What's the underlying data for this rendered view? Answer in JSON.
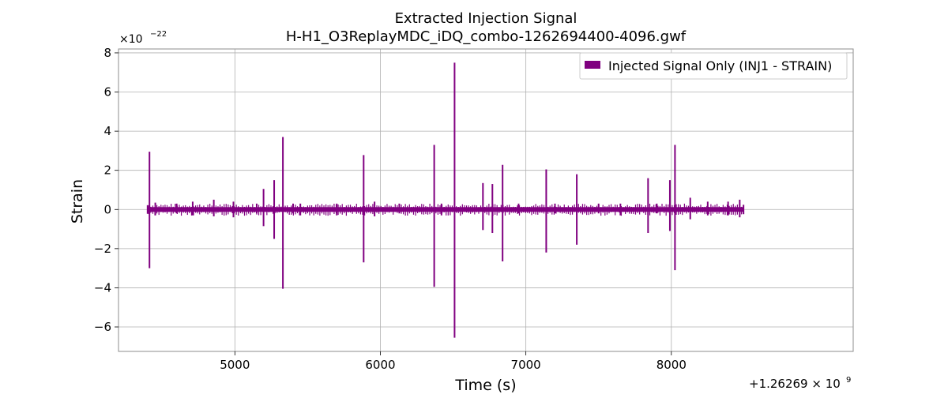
{
  "chart_data": {
    "type": "line",
    "title": "Extracted Injection Signal",
    "subtitle": "H-H1_O3ReplayMDC_iDQ_combo-1262694400-4096.gwf",
    "xlabel": "Time (s)",
    "ylabel": "Strain",
    "x_offset_label": "+1.26269 × 10",
    "x_offset_exp": "9",
    "y_scale_label": "×10",
    "y_scale_exp": "−22",
    "xlim": [
      4200,
      9250
    ],
    "ylim": [
      -7.25,
      8.2
    ],
    "x_ticks": [
      5000,
      6000,
      7000,
      8000
    ],
    "x_tick_labels": [
      "5000",
      "6000",
      "7000",
      "8000"
    ],
    "y_ticks": [
      -6,
      -4,
      -2,
      0,
      2,
      4,
      6,
      8
    ],
    "y_tick_labels": [
      "−6",
      "−4",
      "−2",
      "0",
      "2",
      "4",
      "6",
      "8"
    ],
    "grid": true,
    "legend_position": "top-right",
    "series": [
      {
        "name": "Injected Signal Only (INJ1 - STRAIN)",
        "color": "#800080",
        "x_range": [
          4400,
          8496
        ],
        "baseline_amplitude": 0.12,
        "spikes": [
          {
            "x": 4413,
            "max": 2.95,
            "min": -3.0
          },
          {
            "x": 4453,
            "max": 0.35,
            "min": -0.3
          },
          {
            "x": 4600,
            "max": 0.3,
            "min": -0.2
          },
          {
            "x": 4710,
            "max": 0.4,
            "min": -0.3
          },
          {
            "x": 4855,
            "max": 0.5,
            "min": -0.35
          },
          {
            "x": 4990,
            "max": 0.4,
            "min": -0.4
          },
          {
            "x": 5150,
            "max": 0.3,
            "min": -0.2
          },
          {
            "x": 5197,
            "max": 1.05,
            "min": -0.85
          },
          {
            "x": 5270,
            "max": 1.5,
            "min": -1.5
          },
          {
            "x": 5330,
            "max": 3.7,
            "min": -4.05
          },
          {
            "x": 5400,
            "max": 0.3,
            "min": -0.2
          },
          {
            "x": 5450,
            "max": 0.3,
            "min": -0.3
          },
          {
            "x": 5700,
            "max": 0.3,
            "min": -0.3
          },
          {
            "x": 5885,
            "max": 2.78,
            "min": -2.7
          },
          {
            "x": 5960,
            "max": 0.4,
            "min": -0.35
          },
          {
            "x": 6130,
            "max": 0.3,
            "min": -0.2
          },
          {
            "x": 6370,
            "max": 3.3,
            "min": -3.95
          },
          {
            "x": 6420,
            "max": 0.3,
            "min": -0.3
          },
          {
            "x": 6510,
            "max": 7.5,
            "min": -6.55
          },
          {
            "x": 6705,
            "max": 1.35,
            "min": -1.05
          },
          {
            "x": 6770,
            "max": 1.3,
            "min": -1.2
          },
          {
            "x": 6840,
            "max": 2.28,
            "min": -2.65
          },
          {
            "x": 6950,
            "max": 0.3,
            "min": -0.2
          },
          {
            "x": 7140,
            "max": 2.05,
            "min": -2.2
          },
          {
            "x": 7200,
            "max": 0.3,
            "min": -0.2
          },
          {
            "x": 7350,
            "max": 1.8,
            "min": -1.8
          },
          {
            "x": 7500,
            "max": 0.3,
            "min": -0.2
          },
          {
            "x": 7650,
            "max": 0.3,
            "min": -0.3
          },
          {
            "x": 7840,
            "max": 1.6,
            "min": -1.2
          },
          {
            "x": 7900,
            "max": 0.3,
            "min": -0.2
          },
          {
            "x": 7990,
            "max": 1.5,
            "min": -1.1
          },
          {
            "x": 8025,
            "max": 3.3,
            "min": -3.1
          },
          {
            "x": 8130,
            "max": 0.6,
            "min": -0.5
          },
          {
            "x": 8250,
            "max": 0.4,
            "min": -0.3
          },
          {
            "x": 8390,
            "max": 0.4,
            "min": -0.3
          },
          {
            "x": 8470,
            "max": 0.5,
            "min": -0.4
          }
        ]
      }
    ]
  }
}
